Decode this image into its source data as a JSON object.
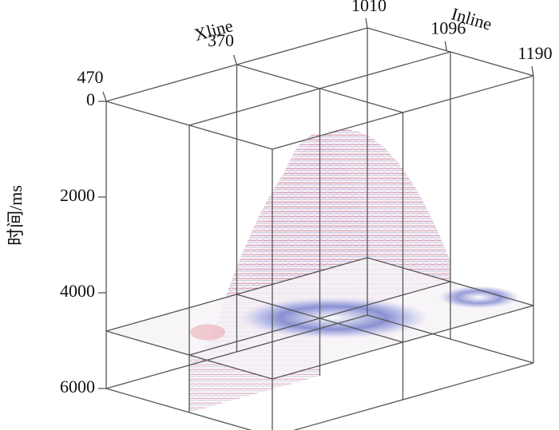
{
  "chart_data": {
    "type": "volume3d",
    "ylabel": "时间/ms",
    "ylim": [
      0,
      6000
    ],
    "yticks": [
      0,
      2000,
      4000,
      6000
    ],
    "xline_label": "Xline",
    "xline_lim": [
      470,
      270
    ],
    "xline_ticks": [
      470,
      370
    ],
    "inline_label": "Inline",
    "inline_lim": [
      1010,
      1190
    ],
    "inline_ticks": [
      1010,
      1096,
      1190
    ]
  }
}
